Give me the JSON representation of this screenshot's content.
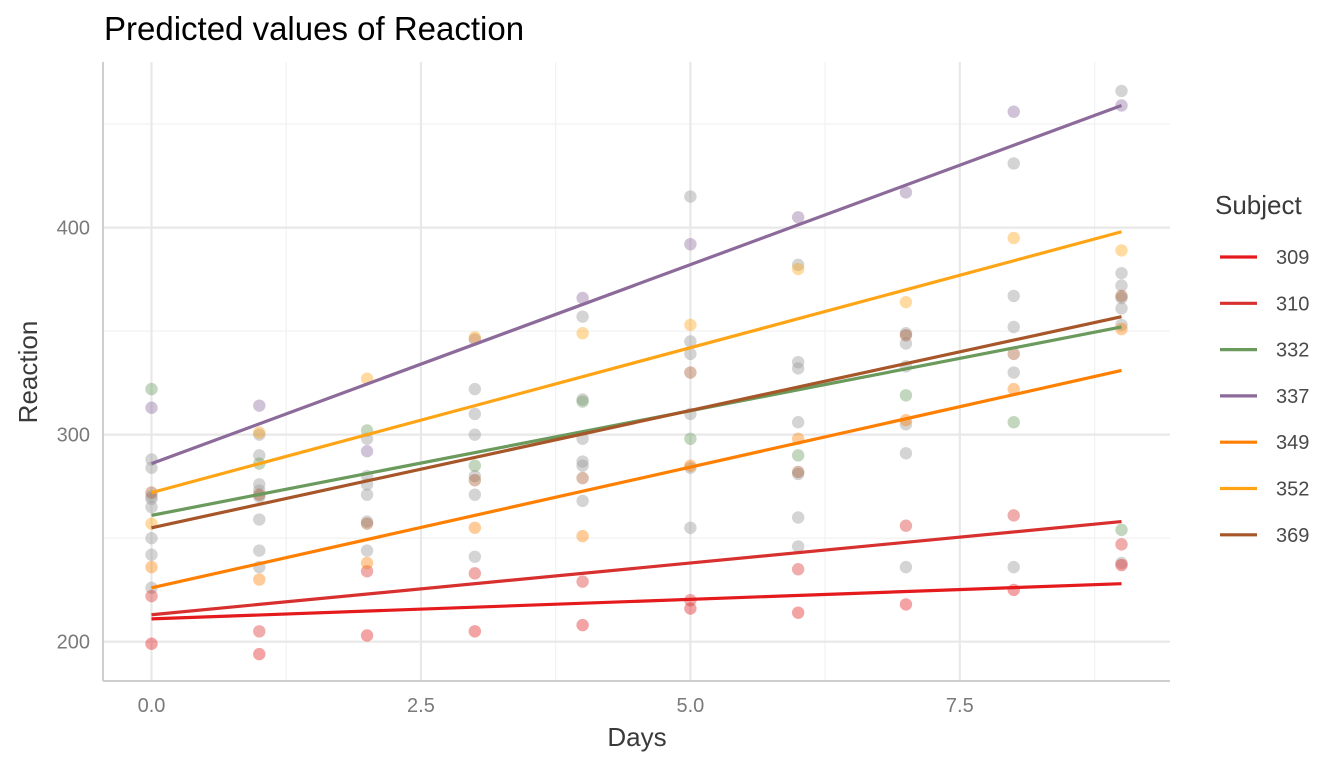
{
  "chart_data": {
    "type": "scatter",
    "title": "Predicted values of Reaction",
    "xlabel": "Days",
    "ylabel": "Reaction",
    "xlim": [
      -0.45,
      9.45
    ],
    "ylim": [
      181,
      480
    ],
    "x_ticks": [
      0,
      2.5,
      5,
      7.5
    ],
    "x_tick_labels": [
      "0.0",
      "2.5",
      "5.0",
      "7.5"
    ],
    "y_ticks": [
      200,
      300,
      400
    ],
    "y_tick_labels": [
      "200",
      "300",
      "400"
    ],
    "grid": true,
    "legend": {
      "title": "Subject",
      "position": "right"
    },
    "series": [
      {
        "name": "309",
        "color": "#e41a1c",
        "line": [
          [
            0,
            211
          ],
          [
            9,
            228
          ]
        ],
        "points": [
          [
            0,
            199
          ],
          [
            1,
            194
          ],
          [
            2,
            203
          ],
          [
            3,
            205
          ],
          [
            4,
            208
          ],
          [
            5,
            216
          ],
          [
            6,
            214
          ],
          [
            7,
            218
          ],
          [
            8,
            225
          ],
          [
            9,
            237
          ]
        ]
      },
      {
        "name": "310",
        "color": "#d7302e",
        "line": [
          [
            0,
            213
          ],
          [
            9,
            258
          ]
        ],
        "points": [
          [
            0,
            222
          ],
          [
            1,
            205
          ],
          [
            2,
            234
          ],
          [
            3,
            233
          ],
          [
            4,
            229
          ],
          [
            5,
            220
          ],
          [
            6,
            235
          ],
          [
            7,
            256
          ],
          [
            8,
            261
          ],
          [
            9,
            247
          ]
        ]
      },
      {
        "name": "332",
        "color": "#6a9a5c",
        "line": [
          [
            0,
            261
          ],
          [
            9,
            352
          ]
        ],
        "points": [
          [
            0,
            322
          ],
          [
            1,
            286
          ],
          [
            2,
            302
          ],
          [
            3,
            285
          ],
          [
            4,
            316
          ],
          [
            5,
            298
          ],
          [
            6,
            290
          ],
          [
            7,
            319
          ],
          [
            8,
            306
          ],
          [
            9,
            254
          ]
        ]
      },
      {
        "name": "337",
        "color": "#8c6a9a",
        "line": [
          [
            0,
            286
          ],
          [
            9,
            459
          ]
        ],
        "points": [
          [
            0,
            313
          ],
          [
            1,
            314
          ],
          [
            2,
            292
          ],
          [
            3,
            346
          ],
          [
            4,
            366
          ],
          [
            5,
            392
          ],
          [
            6,
            405
          ],
          [
            7,
            417
          ],
          [
            8,
            456
          ],
          [
            9,
            459
          ]
        ]
      },
      {
        "name": "349",
        "color": "#ff7f00",
        "line": [
          [
            0,
            226
          ],
          [
            9,
            331
          ]
        ],
        "points": [
          [
            0,
            236
          ],
          [
            1,
            230
          ],
          [
            2,
            238
          ],
          [
            3,
            255
          ],
          [
            4,
            251
          ],
          [
            5,
            285
          ],
          [
            6,
            298
          ],
          [
            7,
            307
          ],
          [
            8,
            322
          ],
          [
            9,
            351
          ]
        ]
      },
      {
        "name": "352",
        "color": "#ffa515",
        "line": [
          [
            0,
            272
          ],
          [
            9,
            398
          ]
        ],
        "points": [
          [
            0,
            257
          ],
          [
            1,
            301
          ],
          [
            2,
            327
          ],
          [
            3,
            347
          ],
          [
            4,
            349
          ],
          [
            5,
            353
          ],
          [
            6,
            380
          ],
          [
            7,
            364
          ],
          [
            8,
            395
          ],
          [
            9,
            389
          ]
        ]
      },
      {
        "name": "369",
        "color": "#a65628",
        "line": [
          [
            0,
            255
          ],
          [
            9,
            357
          ]
        ],
        "points": [
          [
            0,
            272
          ],
          [
            1,
            271
          ],
          [
            2,
            257
          ],
          [
            3,
            278
          ],
          [
            4,
            279
          ],
          [
            5,
            330
          ],
          [
            6,
            282
          ],
          [
            7,
            348
          ],
          [
            8,
            339
          ],
          [
            9,
            367
          ]
        ]
      }
    ],
    "other_points_color": "#a0a0a0",
    "other_points": [
      [
        0,
        284
      ],
      [
        0,
        265
      ],
      [
        0,
        242
      ],
      [
        0,
        226
      ],
      [
        0,
        270
      ],
      [
        0,
        250
      ],
      [
        0,
        288
      ],
      [
        0,
        269
      ],
      [
        1,
        290
      ],
      [
        1,
        276
      ],
      [
        1,
        259
      ],
      [
        1,
        236
      ],
      [
        1,
        270
      ],
      [
        1,
        300
      ],
      [
        1,
        273
      ],
      [
        1,
        244
      ],
      [
        2,
        298
      ],
      [
        2,
        280
      ],
      [
        2,
        244
      ],
      [
        2,
        276
      ],
      [
        2,
        271
      ],
      [
        2,
        258
      ],
      [
        3,
        322
      ],
      [
        3,
        310
      ],
      [
        3,
        300
      ],
      [
        3,
        271
      ],
      [
        3,
        241
      ],
      [
        3,
        280
      ],
      [
        4,
        357
      ],
      [
        4,
        317
      ],
      [
        4,
        298
      ],
      [
        4,
        287
      ],
      [
        4,
        268
      ],
      [
        4,
        285
      ],
      [
        5,
        415
      ],
      [
        5,
        345
      ],
      [
        5,
        339
      ],
      [
        5,
        310
      ],
      [
        5,
        284
      ],
      [
        5,
        255
      ],
      [
        6,
        382
      ],
      [
        6,
        335
      ],
      [
        6,
        332
      ],
      [
        6,
        306
      ],
      [
        6,
        281
      ],
      [
        6,
        260
      ],
      [
        6,
        246
      ],
      [
        7,
        349
      ],
      [
        7,
        344
      ],
      [
        7,
        333
      ],
      [
        7,
        291
      ],
      [
        7,
        305
      ],
      [
        7,
        236
      ],
      [
        8,
        431
      ],
      [
        8,
        367
      ],
      [
        8,
        352
      ],
      [
        8,
        330
      ],
      [
        8,
        236
      ],
      [
        9,
        466
      ],
      [
        9,
        378
      ],
      [
        9,
        372
      ],
      [
        9,
        366
      ],
      [
        9,
        361
      ],
      [
        9,
        353
      ],
      [
        9,
        238
      ]
    ]
  }
}
